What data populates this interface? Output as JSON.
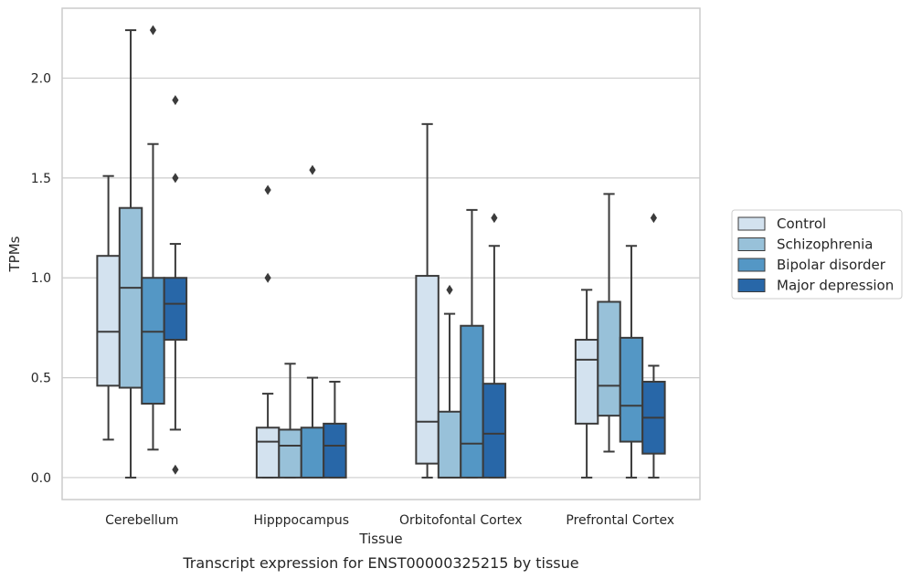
{
  "chart_data": {
    "type": "box",
    "title": "",
    "caption": "Transcript expression for ENST00000325215 by tissue",
    "xlabel": "Tissue",
    "ylabel": "TPMs",
    "ylim": [
      -0.11,
      2.35
    ],
    "yticks": [
      0.0,
      0.5,
      1.0,
      1.5,
      2.0
    ],
    "ytick_labels": [
      "0.0",
      "0.5",
      "1.0",
      "1.5",
      "2.0"
    ],
    "grid": "horizontal",
    "legend_position": "right",
    "categories": [
      "Cerebellum",
      "Hipppocampus",
      "Orbitofontal Cortex",
      "Prefrontal Cortex"
    ],
    "series": [
      {
        "name": "Control",
        "color": "#d3e2ef",
        "boxes": [
          {
            "whisker_low": 0.19,
            "q1": 0.46,
            "median": 0.73,
            "q3": 1.11,
            "whisker_high": 1.51,
            "outliers": []
          },
          {
            "whisker_low": 0.0,
            "q1": 0.0,
            "median": 0.18,
            "q3": 0.25,
            "whisker_high": 0.42,
            "outliers": [
              1.0,
              1.44
            ]
          },
          {
            "whisker_low": 0.0,
            "q1": 0.07,
            "median": 0.28,
            "q3": 1.01,
            "whisker_high": 1.77,
            "outliers": []
          },
          {
            "whisker_low": 0.0,
            "q1": 0.27,
            "median": 0.59,
            "q3": 0.69,
            "whisker_high": 0.94,
            "outliers": []
          }
        ]
      },
      {
        "name": "Schizophrenia",
        "color": "#98c1d9",
        "boxes": [
          {
            "whisker_low": 0.0,
            "q1": 0.45,
            "median": 0.95,
            "q3": 1.35,
            "whisker_high": 2.24,
            "outliers": []
          },
          {
            "whisker_low": 0.0,
            "q1": 0.0,
            "median": 0.16,
            "q3": 0.24,
            "whisker_high": 0.57,
            "outliers": []
          },
          {
            "whisker_low": 0.0,
            "q1": 0.0,
            "median": 0.0,
            "q3": 0.33,
            "whisker_high": 0.82,
            "outliers": [
              0.94
            ]
          },
          {
            "whisker_low": 0.13,
            "q1": 0.31,
            "median": 0.46,
            "q3": 0.88,
            "whisker_high": 1.42,
            "outliers": []
          }
        ]
      },
      {
        "name": "Bipolar disorder",
        "color": "#5497c5",
        "boxes": [
          {
            "whisker_low": 0.14,
            "q1": 0.37,
            "median": 0.73,
            "q3": 1.0,
            "whisker_high": 1.67,
            "outliers": [
              2.24
            ]
          },
          {
            "whisker_low": 0.0,
            "q1": 0.0,
            "median": 0.0,
            "q3": 0.25,
            "whisker_high": 0.5,
            "outliers": [
              1.54
            ]
          },
          {
            "whisker_low": 0.0,
            "q1": 0.0,
            "median": 0.17,
            "q3": 0.76,
            "whisker_high": 1.34,
            "outliers": []
          },
          {
            "whisker_low": 0.0,
            "q1": 0.18,
            "median": 0.36,
            "q3": 0.7,
            "whisker_high": 1.16,
            "outliers": []
          }
        ]
      },
      {
        "name": "Major depression",
        "color": "#2867a8",
        "boxes": [
          {
            "whisker_low": 0.24,
            "q1": 0.69,
            "median": 0.87,
            "q3": 1.0,
            "whisker_high": 1.17,
            "outliers": [
              0.04,
              1.5,
              1.89
            ]
          },
          {
            "whisker_low": 0.0,
            "q1": 0.0,
            "median": 0.16,
            "q3": 0.27,
            "whisker_high": 0.48,
            "outliers": []
          },
          {
            "whisker_low": 0.0,
            "q1": 0.0,
            "median": 0.22,
            "q3": 0.47,
            "whisker_high": 1.16,
            "outliers": [
              1.3
            ]
          },
          {
            "whisker_low": 0.0,
            "q1": 0.12,
            "median": 0.3,
            "q3": 0.48,
            "whisker_high": 0.56,
            "outliers": [
              1.3
            ]
          }
        ]
      }
    ]
  }
}
